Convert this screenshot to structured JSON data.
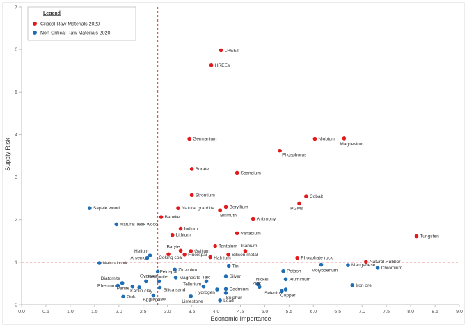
{
  "chart_data": {
    "type": "scatter",
    "title": "",
    "xlabel": "Economic Importance",
    "ylabel": "Supply Risk",
    "xlim": [
      0,
      9
    ],
    "ylim": [
      0,
      7
    ],
    "xticks": [
      "0.0",
      "0.5",
      "1.0",
      "1.5",
      "2.0",
      "2.5",
      "3.0",
      "3.5",
      "4.0",
      "4.5",
      "5.0",
      "5.5",
      "6.0",
      "6.5",
      "7.0",
      "7.5",
      "8.0",
      "8.5",
      "9.0"
    ],
    "yticks": [
      "0",
      "1",
      "2",
      "3",
      "4",
      "5",
      "6",
      "7"
    ],
    "thresholds": {
      "x": 2.8,
      "y": 1.0
    },
    "grid": false,
    "legend": {
      "title": "Legend",
      "placement": "top-left",
      "entries": [
        {
          "name": "Critical Raw Materials 2020",
          "color": "#e21a1c"
        },
        {
          "name": "Non-Critical Raw Materials 2020",
          "color": "#1f6eb5"
        }
      ]
    },
    "series": [
      {
        "name": "Critical Raw Materials 2020",
        "color": "#e21a1c",
        "points": [
          {
            "label": "LREEs",
            "x": 4.1,
            "y": 5.98
          },
          {
            "label": "HREEs",
            "x": 3.9,
            "y": 5.63
          },
          {
            "label": "Germanium",
            "x": 3.45,
            "y": 3.9
          },
          {
            "label": "Niobium",
            "x": 6.03,
            "y": 3.9
          },
          {
            "label": "Magnesium",
            "x": 6.63,
            "y": 3.91
          },
          {
            "label": "Phosphorus",
            "x": 5.31,
            "y": 3.62
          },
          {
            "label": "Borate",
            "x": 3.5,
            "y": 3.19
          },
          {
            "label": "Scandium",
            "x": 4.43,
            "y": 3.1
          },
          {
            "label": "Strontium",
            "x": 3.5,
            "y": 2.58
          },
          {
            "label": "Cobalt",
            "x": 5.85,
            "y": 2.55
          },
          {
            "label": "PGMs",
            "x": 5.71,
            "y": 2.38
          },
          {
            "label": "Natural graphite",
            "x": 3.22,
            "y": 2.27
          },
          {
            "label": "Beryllium",
            "x": 4.2,
            "y": 2.3
          },
          {
            "label": "Bismuth",
            "x": 4.08,
            "y": 2.22
          },
          {
            "label": "Antimony",
            "x": 4.76,
            "y": 2.02
          },
          {
            "label": "Bauxite",
            "x": 2.87,
            "y": 2.06
          },
          {
            "label": "Indium",
            "x": 3.27,
            "y": 1.79
          },
          {
            "label": "Vanadium",
            "x": 4.43,
            "y": 1.68
          },
          {
            "label": "Lithium",
            "x": 3.1,
            "y": 1.64
          },
          {
            "label": "Tungsten",
            "x": 8.12,
            "y": 1.61
          },
          {
            "label": "Titanium",
            "x": 4.6,
            "y": 1.26
          },
          {
            "label": "Baryte",
            "x": 3.27,
            "y": 1.27
          },
          {
            "label": "Tantalum",
            "x": 3.98,
            "y": 1.38
          },
          {
            "label": "Gallium",
            "x": 3.48,
            "y": 1.26
          },
          {
            "label": "Coking coal",
            "x": 3.02,
            "y": 1.19
          },
          {
            "label": "Fluorspar",
            "x": 3.35,
            "y": 1.18
          },
          {
            "label": "Silicon metal",
            "x": 4.25,
            "y": 1.18
          },
          {
            "label": "Hafnium",
            "x": 3.88,
            "y": 1.12
          },
          {
            "label": "Phosphate rock",
            "x": 5.67,
            "y": 1.1
          },
          {
            "label": "Natural Rubber",
            "x": 7.08,
            "y": 1.01
          }
        ]
      },
      {
        "name": "Non-Critical Raw Materials 2020",
        "color": "#1f6eb5",
        "points": [
          {
            "label": "Sapele wood",
            "x": 1.4,
            "y": 2.27
          },
          {
            "label": "Natural Teak wood",
            "x": 1.95,
            "y": 1.89
          },
          {
            "label": "Helium",
            "x": 2.64,
            "y": 1.16
          },
          {
            "label": "Arsenic",
            "x": 2.58,
            "y": 1.1
          },
          {
            "label": "Natural cork",
            "x": 1.6,
            "y": 0.98
          },
          {
            "label": "Molybdenum",
            "x": 6.16,
            "y": 0.94
          },
          {
            "label": "Manganese",
            "x": 6.71,
            "y": 0.93
          },
          {
            "label": "Chromium",
            "x": 7.32,
            "y": 0.87
          },
          {
            "label": "Tin",
            "x": 4.26,
            "y": 0.91
          },
          {
            "label": "Zirconium",
            "x": 3.15,
            "y": 0.83
          },
          {
            "label": "Feldspar",
            "x": 2.8,
            "y": 0.78
          },
          {
            "label": "Potash",
            "x": 5.38,
            "y": 0.79
          },
          {
            "label": "Magnesite",
            "x": 3.17,
            "y": 0.64
          },
          {
            "label": "Silver",
            "x": 4.2,
            "y": 0.67
          },
          {
            "label": "Aluminium",
            "x": 5.43,
            "y": 0.6
          },
          {
            "label": "Bentonite",
            "x": 2.83,
            "y": 0.55
          },
          {
            "label": "Gypsum",
            "x": 2.56,
            "y": 0.55
          },
          {
            "label": "Diatomite",
            "x": 2.07,
            "y": 0.51
          },
          {
            "label": "Talc",
            "x": 3.8,
            "y": 0.55
          },
          {
            "label": "Nickel",
            "x": 4.86,
            "y": 0.48
          },
          {
            "label": "Iron ore",
            "x": 6.8,
            "y": 0.46
          },
          {
            "label": "Rhenium",
            "x": 1.98,
            "y": 0.45
          },
          {
            "label": "Perlite",
            "x": 2.28,
            "y": 0.43
          },
          {
            "label": "Kaolin clay",
            "x": 2.42,
            "y": 0.41
          },
          {
            "label": "Silica sand",
            "x": 2.84,
            "y": 0.4
          },
          {
            "label": "Tellurium",
            "x": 3.74,
            "y": 0.43
          },
          {
            "label": "Hydrogen",
            "x": 4.02,
            "y": 0.36
          },
          {
            "label": "Cadmium",
            "x": 4.2,
            "y": 0.37
          },
          {
            "label": "Zinc",
            "x": 4.89,
            "y": 0.42
          },
          {
            "label": "Selenium",
            "x": 5.43,
            "y": 0.36
          },
          {
            "label": "Copper",
            "x": 5.35,
            "y": 0.32
          },
          {
            "label": "Sulphur",
            "x": 4.2,
            "y": 0.28
          },
          {
            "label": "Gold",
            "x": 2.09,
            "y": 0.19
          },
          {
            "label": "Aggregates",
            "x": 2.71,
            "y": 0.22
          },
          {
            "label": "Limestone",
            "x": 3.48,
            "y": 0.2
          },
          {
            "label": "Lead",
            "x": 4.08,
            "y": 0.1
          }
        ]
      }
    ]
  }
}
